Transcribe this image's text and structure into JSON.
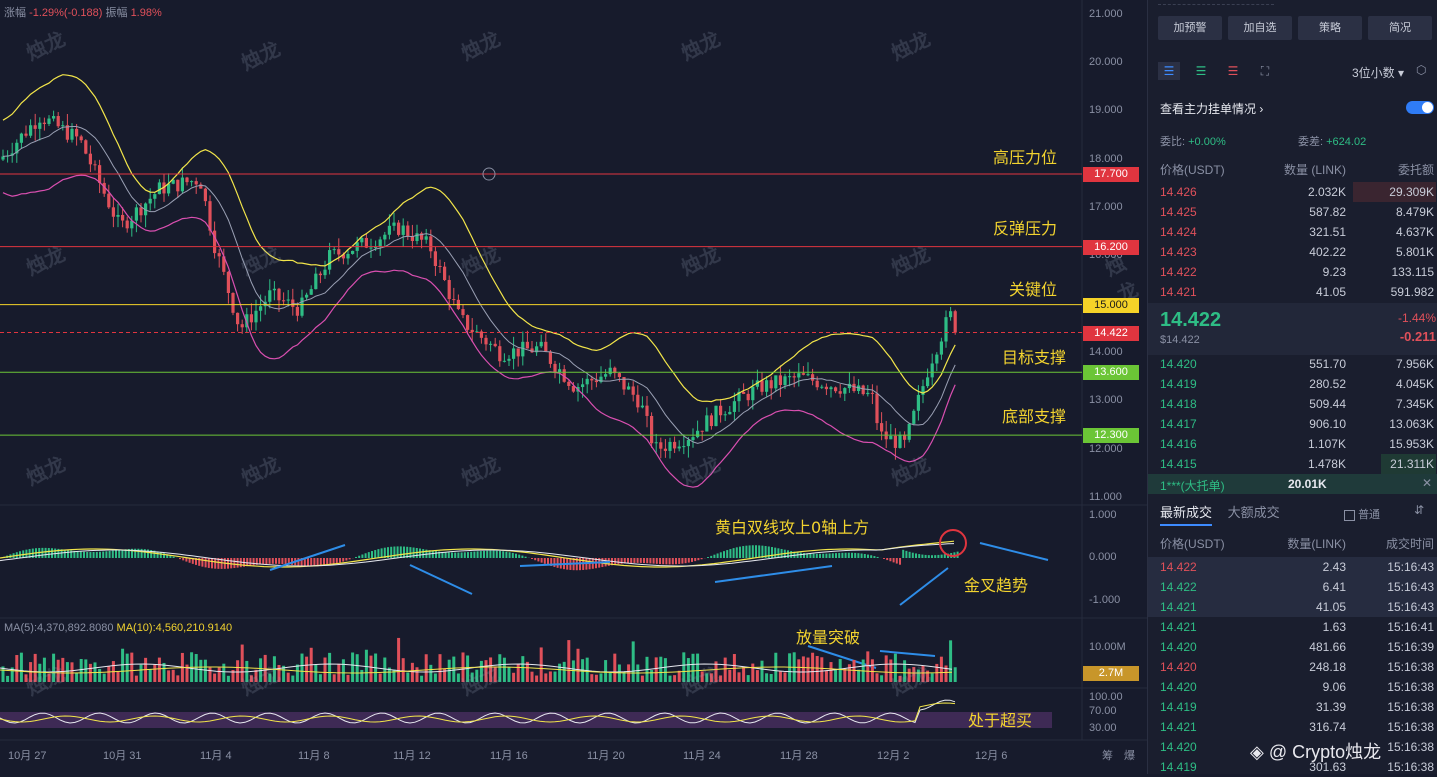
{
  "header": {
    "change_label": "涨幅",
    "change_value": "-1.29%(-0.188)",
    "amplitude_label": "振幅",
    "amplitude_value": "1.98%"
  },
  "annotations": {
    "high_resistance": "高压力位",
    "rebound_resistance": "反弹压力",
    "key_level": "关键位",
    "target_support": "目标支撑",
    "bottom_support": "底部支撑",
    "macd_note": "黄白双线攻上0轴上方",
    "golden_cross": "金叉趋势",
    "volume_breakout": "放量突破",
    "overbought": "处于超买"
  },
  "watermark": "烛龙",
  "price_axis": [
    "21.000",
    "20.000",
    "19.000",
    "18.000",
    "17.000",
    "16.000",
    "15.000",
    "14.000",
    "13.000",
    "12.000",
    "11.000"
  ],
  "level_tags": [
    {
      "value": "17.700",
      "color": "#e0353f"
    },
    {
      "value": "16.200",
      "color": "#e0353f"
    },
    {
      "value": "15.000",
      "color": "#f5d328"
    },
    {
      "value": "14.422",
      "color": "#e0353f"
    },
    {
      "value": "13.600",
      "color": "#6bc536"
    },
    {
      "value": "12.300",
      "color": "#6bc536"
    }
  ],
  "macd_axis": [
    "1.000",
    "0.000",
    "-1.000"
  ],
  "volume_axis": {
    "top": "10.00M",
    "current": "2.7M"
  },
  "rsi_axis": [
    "100.00",
    "70.00",
    "30.00"
  ],
  "ma_info": {
    "ma5": "MA(5):4,370,892.8080",
    "ma10": "MA(10):4,560,210.9140"
  },
  "x_axis": [
    "10月 27",
    "10月 31",
    "11月 4",
    "11月 8",
    "11月 12",
    "11月 16",
    "11月 20",
    "11月 24",
    "11月 28",
    "12月 2",
    "12月 6"
  ],
  "x_extra": [
    "筹",
    "爆"
  ],
  "panel": {
    "buttons": [
      "加预警",
      "加自选",
      "策略",
      "简况"
    ],
    "decimals": "3位小数",
    "main_orders": "查看主力挂单情况",
    "ratio_label": "委比:",
    "ratio_value": "+0.00%",
    "diff_label": "委差:",
    "diff_value": "+624.02",
    "book_headers": [
      "价格(USDT)",
      "数量 (LINK)",
      "委托额"
    ],
    "asks": [
      [
        "14.426",
        "2.032K",
        "29.309K"
      ],
      [
        "14.425",
        "587.82",
        "8.479K"
      ],
      [
        "14.424",
        "321.51",
        "4.637K"
      ],
      [
        "14.423",
        "402.22",
        "5.801K"
      ],
      [
        "14.422",
        "9.23",
        "133.115"
      ],
      [
        "14.421",
        "41.05",
        "591.982"
      ]
    ],
    "last_price": "14.422",
    "last_price_sub": "$14.422",
    "last_change_pct": "-1.44%",
    "last_change": "-0.211",
    "bids": [
      [
        "14.420",
        "551.70",
        "7.956K"
      ],
      [
        "14.419",
        "280.52",
        "4.045K"
      ],
      [
        "14.418",
        "509.44",
        "7.345K"
      ],
      [
        "14.417",
        "906.10",
        "13.063K"
      ],
      [
        "14.416",
        "1.107K",
        "15.953K"
      ],
      [
        "14.415",
        "1.478K",
        "21.311K"
      ]
    ],
    "big_order_label": "1***(大托单)",
    "big_order_value": "20.01K",
    "trade_tabs": [
      "最新成交",
      "大额成交"
    ],
    "normal_label": "普通",
    "trade_headers": [
      "价格(USDT)",
      "数量(LINK)",
      "成交时间"
    ],
    "trades": [
      [
        "14.422",
        "2.43",
        "15:16:43",
        "red"
      ],
      [
        "14.422",
        "6.41",
        "15:16:43",
        "green"
      ],
      [
        "14.421",
        "41.05",
        "15:16:43",
        "green"
      ],
      [
        "14.421",
        "1.63",
        "15:16:41",
        "green"
      ],
      [
        "14.420",
        "481.66",
        "15:16:39",
        "green"
      ],
      [
        "14.420",
        "248.18",
        "15:16:38",
        "red"
      ],
      [
        "14.420",
        "9.06",
        "15:16:38",
        "green"
      ],
      [
        "14.419",
        "31.39",
        "15:16:38",
        "green"
      ],
      [
        "14.421",
        "316.74",
        "15:16:38",
        "green"
      ],
      [
        "14.420",
        "",
        "15:16:38",
        "green"
      ],
      [
        "14.419",
        "301.63",
        "15:16:38",
        "green"
      ]
    ],
    "footer_brand": "Crypto烛龙"
  },
  "colors": {
    "up": "#2ebd85",
    "down": "#e0505a",
    "accent": "#f2d32f"
  }
}
